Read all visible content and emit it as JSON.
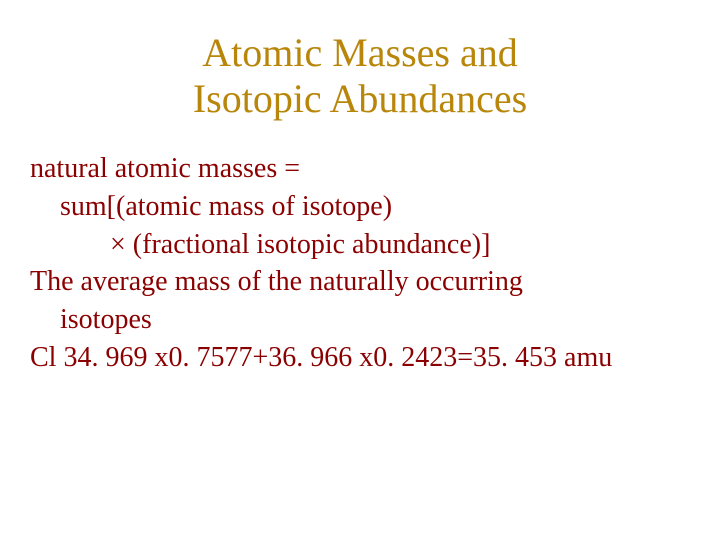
{
  "title_color": "#b8860b",
  "body_color": "#8b0000",
  "title_line1": "Atomic Masses and",
  "title_line2": "Isotopic Abundances",
  "body": {
    "line1": "natural atomic masses =",
    "line2": "sum[(atomic mass of isotope)",
    "line3": "× (fractional isotopic abundance)]",
    "line4": "The average mass of the naturally occurring",
    "line5": "isotopes",
    "line6": "Cl 34. 969 x0. 7577+36. 966 x0. 2423=35. 453 amu"
  },
  "fonts": {
    "title_size": 40,
    "body_size": 28,
    "family": "Times New Roman"
  },
  "background_color": "#ffffff"
}
